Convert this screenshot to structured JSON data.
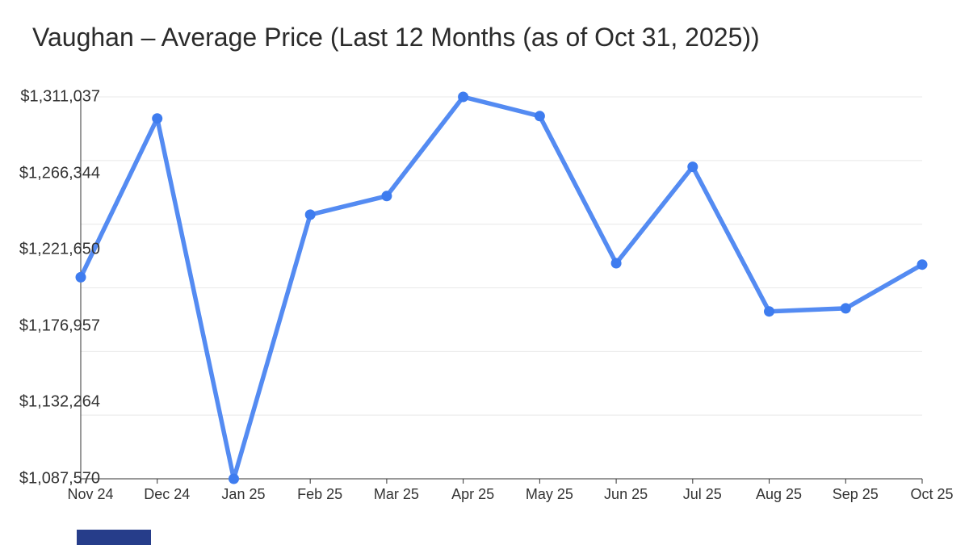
{
  "title": "Vaughan – Average Price (Last 12 Months (as of Oct 31, 2025))",
  "chart_data": {
    "type": "line",
    "title": "Vaughan – Average Price (Last 12 Months (as of Oct 31, 2025))",
    "categories": [
      "Nov 24",
      "Dec 24",
      "Jan 25",
      "Feb 25",
      "Mar 25",
      "Apr 25",
      "May 25",
      "Jun 25",
      "Jul 25",
      "Aug 25",
      "Sep 25",
      "Oct 25"
    ],
    "series": [
      {
        "name": "Average Price",
        "values": [
          1205500,
          1298400,
          1087570,
          1242100,
          1253000,
          1311037,
          1299800,
          1213700,
          1270100,
          1185500,
          1187300,
          1212900
        ]
      }
    ],
    "ylim": [
      1087570,
      1311037
    ],
    "y_tick_labels": [
      "$1,311,037",
      "$1,266,344",
      "$1,221,650",
      "$1,176,957",
      "$1,132,264",
      "$1,087,570"
    ],
    "xlabel": "",
    "ylabel": "",
    "grid": "horizontal",
    "legend": "none",
    "colors": {
      "line": "#548BF2",
      "point": "#3E7CEF",
      "grid": "#e8e8e8",
      "axis": "#333333",
      "tick_label": "#333333",
      "title": "#2b2b2b"
    }
  },
  "footer_bar": {
    "color": "#263d8a"
  }
}
